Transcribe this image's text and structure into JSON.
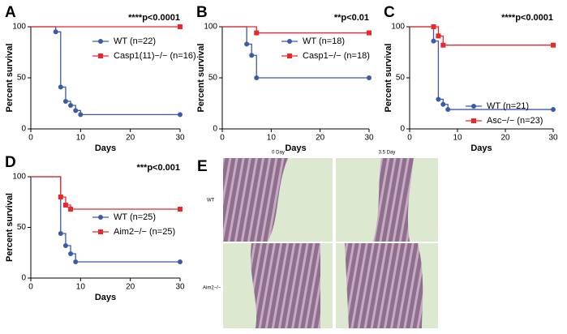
{
  "chart_data": [
    {
      "type": "survival",
      "title": "A",
      "annotation": "****p<0.0001",
      "x_label": "Days",
      "y_label": "Percent survival",
      "xlim": [
        0,
        30
      ],
      "xticks": [
        0,
        10,
        20,
        30
      ],
      "ylim": [
        0,
        100
      ],
      "yticks": [
        0,
        50,
        100
      ],
      "legend": "upper right",
      "series": [
        {
          "name": "WT (n=22)",
          "color": "#3a5ba8",
          "marker": "circle",
          "x": [
            0,
            5,
            6,
            7,
            8,
            9,
            10,
            30
          ],
          "values": [
            100,
            95,
            41,
            27,
            23,
            18,
            14,
            14
          ]
        },
        {
          "name": "Casp1(11)−/− (n=16)",
          "color": "#e8282a",
          "marker": "square",
          "x": [
            0,
            30
          ],
          "values": [
            100,
            100
          ]
        }
      ]
    },
    {
      "type": "survival",
      "title": "B",
      "annotation": "**p<0.01",
      "x_label": "Days",
      "y_label": "Percent survival",
      "xlim": [
        0,
        30
      ],
      "xticks": [
        0,
        10,
        20,
        30
      ],
      "ylim": [
        0,
        100
      ],
      "yticks": [
        0,
        50,
        100
      ],
      "legend": "upper right",
      "series": [
        {
          "name": "WT (n=18)",
          "color": "#3a5ba8",
          "marker": "circle",
          "x": [
            0,
            5,
            6,
            7,
            30
          ],
          "values": [
            100,
            83,
            72,
            50,
            50
          ]
        },
        {
          "name": "Casp1−/− (n=18)",
          "color": "#e8282a",
          "marker": "square",
          "x": [
            0,
            7,
            30
          ],
          "values": [
            100,
            94,
            94
          ]
        }
      ]
    },
    {
      "type": "survival",
      "title": "C",
      "annotation": "****p<0.0001",
      "x_label": "Days",
      "y_label": "Percent survival",
      "xlim": [
        0,
        30
      ],
      "xticks": [
        0,
        10,
        20,
        30
      ],
      "ylim": [
        0,
        100
      ],
      "yticks": [
        0,
        50,
        100
      ],
      "legend": "lower right",
      "series": [
        {
          "name": "WT (n=21)",
          "color": "#3a5ba8",
          "marker": "circle",
          "x": [
            0,
            5,
            6,
            7,
            8,
            30
          ],
          "values": [
            100,
            86,
            29,
            24,
            19,
            19
          ]
        },
        {
          "name": "Asc−/− (n=23)",
          "color": "#e8282a",
          "marker": "square",
          "x": [
            0,
            5,
            6,
            7,
            30
          ],
          "values": [
            100,
            100,
            91,
            82,
            82
          ]
        }
      ]
    },
    {
      "type": "survival",
      "title": "D",
      "annotation": "***p<0.001",
      "x_label": "Days",
      "y_label": "Percent survival",
      "xlim": [
        0,
        30
      ],
      "xticks": [
        0,
        10,
        20,
        30
      ],
      "ylim": [
        0,
        100
      ],
      "yticks": [
        0,
        50,
        100
      ],
      "legend": "center right",
      "series": [
        {
          "name": "WT (n=25)",
          "color": "#3a5ba8",
          "marker": "circle",
          "x": [
            0,
            6,
            7,
            8,
            9,
            30
          ],
          "values": [
            100,
            44,
            32,
            24,
            16,
            16
          ]
        },
        {
          "name": "Aim2−/− (n=25)",
          "color": "#e8282a",
          "marker": "square",
          "x": [
            0,
            6,
            7,
            8,
            30
          ],
          "values": [
            100,
            80,
            72,
            68,
            68
          ]
        }
      ]
    }
  ],
  "image_panel": {
    "title": "E",
    "columns": [
      "0 Day",
      "3.5 Day"
    ],
    "rows": [
      "WT",
      "Aim2−/−"
    ]
  }
}
